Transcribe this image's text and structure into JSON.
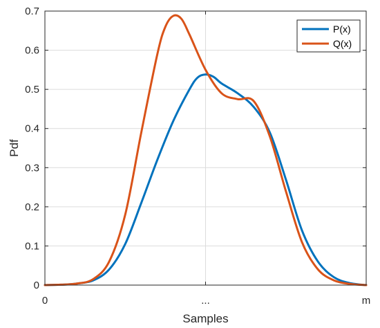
{
  "chart_data": {
    "type": "line",
    "title": "",
    "xlabel": "Samples",
    "ylabel": "Pdf",
    "xlim": [
      0,
      2
    ],
    "ylim": [
      0,
      0.7
    ],
    "x_ticks": [
      {
        "value": 0,
        "label": "0"
      },
      {
        "value": 1,
        "label": "..."
      },
      {
        "value": 2,
        "label": "m"
      }
    ],
    "y_ticks": [
      {
        "value": 0,
        "label": "0"
      },
      {
        "value": 0.1,
        "label": "0.1"
      },
      {
        "value": 0.2,
        "label": "0.2"
      },
      {
        "value": 0.3,
        "label": "0.3"
      },
      {
        "value": 0.4,
        "label": "0.4"
      },
      {
        "value": 0.5,
        "label": "0.5"
      },
      {
        "value": 0.6,
        "label": "0.6"
      },
      {
        "value": 0.7,
        "label": "0.7"
      }
    ],
    "grid": true,
    "legend_position": "top-right",
    "series": [
      {
        "name": "P(x)",
        "color": "#0072BD",
        "points": [
          [
            0.0,
            0.0
          ],
          [
            0.1,
            0.001
          ],
          [
            0.2,
            0.004
          ],
          [
            0.3,
            0.012
          ],
          [
            0.4,
            0.04
          ],
          [
            0.5,
            0.105
          ],
          [
            0.6,
            0.21
          ],
          [
            0.7,
            0.32
          ],
          [
            0.8,
            0.42
          ],
          [
            0.9,
            0.5
          ],
          [
            0.95,
            0.53
          ],
          [
            1.0,
            0.538
          ],
          [
            1.05,
            0.532
          ],
          [
            1.1,
            0.515
          ],
          [
            1.2,
            0.49
          ],
          [
            1.3,
            0.455
          ],
          [
            1.4,
            0.39
          ],
          [
            1.5,
            0.27
          ],
          [
            1.6,
            0.14
          ],
          [
            1.7,
            0.06
          ],
          [
            1.8,
            0.02
          ],
          [
            1.9,
            0.005
          ],
          [
            2.0,
            0.0
          ]
        ]
      },
      {
        "name": "Q(x)",
        "color": "#D95319",
        "points": [
          [
            0.0,
            0.0
          ],
          [
            0.1,
            0.001
          ],
          [
            0.2,
            0.004
          ],
          [
            0.3,
            0.015
          ],
          [
            0.4,
            0.06
          ],
          [
            0.5,
            0.18
          ],
          [
            0.6,
            0.39
          ],
          [
            0.7,
            0.59
          ],
          [
            0.75,
            0.66
          ],
          [
            0.8,
            0.688
          ],
          [
            0.85,
            0.68
          ],
          [
            0.9,
            0.64
          ],
          [
            1.0,
            0.55
          ],
          [
            1.1,
            0.49
          ],
          [
            1.2,
            0.475
          ],
          [
            1.3,
            0.47
          ],
          [
            1.4,
            0.38
          ],
          [
            1.5,
            0.24
          ],
          [
            1.6,
            0.11
          ],
          [
            1.7,
            0.04
          ],
          [
            1.8,
            0.012
          ],
          [
            1.9,
            0.003
          ],
          [
            2.0,
            0.0
          ]
        ]
      }
    ]
  }
}
